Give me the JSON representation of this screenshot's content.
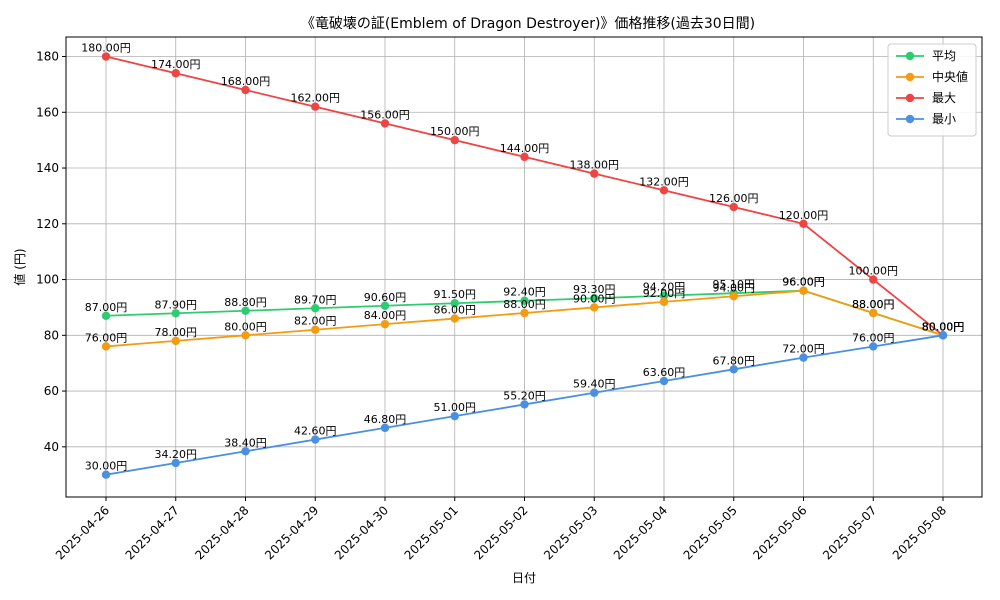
{
  "chart_data": {
    "type": "line",
    "title": "《竜破壊の証(Emblem of Dragon Destroyer)》価格推移(過去30日間)",
    "xlabel": "日付",
    "ylabel": "値 (円)",
    "ylim": [
      22,
      187
    ],
    "yticks": [
      40,
      60,
      80,
      100,
      120,
      140,
      160,
      180
    ],
    "grid": true,
    "legend_position": "top-right",
    "value_suffix": "円",
    "categories": [
      "2025-04-26",
      "2025-04-27",
      "2025-04-28",
      "2025-04-29",
      "2025-04-30",
      "2025-05-01",
      "2025-05-02",
      "2025-05-03",
      "2025-05-04",
      "2025-05-05",
      "2025-05-06",
      "2025-05-07",
      "2025-05-08"
    ],
    "series": [
      {
        "name": "平均",
        "color": "#2ecc71",
        "values": [
          87.0,
          87.9,
          88.8,
          89.7,
          90.6,
          91.5,
          92.4,
          93.3,
          94.2,
          95.1,
          96.0,
          88.0,
          80.0
        ]
      },
      {
        "name": "中央値",
        "color": "#f39c12",
        "values": [
          76.0,
          78.0,
          80.0,
          82.0,
          84.0,
          86.0,
          88.0,
          90.0,
          92.0,
          94.0,
          96.0,
          88.0,
          80.0
        ]
      },
      {
        "name": "最大",
        "color": "#ef4444",
        "values": [
          180.0,
          174.0,
          168.0,
          162.0,
          156.0,
          150.0,
          144.0,
          138.0,
          132.0,
          126.0,
          120.0,
          100.0,
          80.0
        ]
      },
      {
        "name": "最小",
        "color": "#4a90e2",
        "values": [
          30.0,
          34.2,
          38.4,
          42.6,
          46.8,
          51.0,
          55.2,
          59.4,
          63.6,
          67.8,
          72.0,
          76.0,
          80.0
        ]
      }
    ]
  }
}
